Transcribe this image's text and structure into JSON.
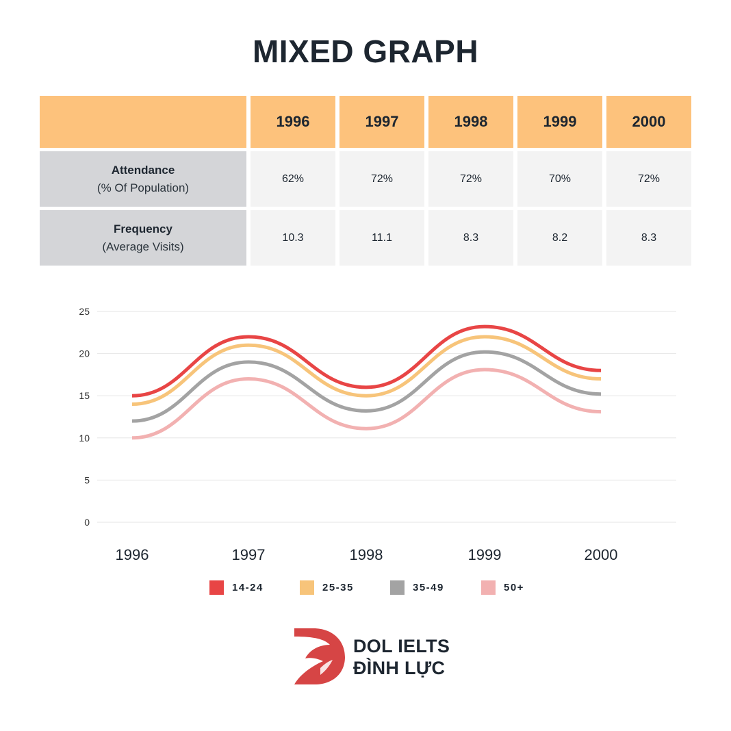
{
  "title": "MIXED GRAPH",
  "table": {
    "years": [
      "1996",
      "1997",
      "1998",
      "1999",
      "2000"
    ],
    "rows": [
      {
        "label": "Attendance",
        "sublabel": "(% Of Population)",
        "values": [
          "62%",
          "72%",
          "72%",
          "70%",
          "72%"
        ]
      },
      {
        "label": "Frequency",
        "sublabel": "(Average Visits)",
        "values": [
          "10.3",
          "11.1",
          "8.3",
          "8.2",
          "8.3"
        ]
      }
    ]
  },
  "chart_data": {
    "type": "line",
    "categories": [
      "1996",
      "1997",
      "1998",
      "1999",
      "2000"
    ],
    "ylim": [
      0,
      25
    ],
    "yticks": [
      "0",
      "5",
      "10",
      "15",
      "20",
      "25"
    ],
    "grid": true,
    "legend_position": "bottom",
    "series": [
      {
        "name": "14-24",
        "color": "#e84545",
        "values": [
          15,
          22,
          16,
          23.2,
          18
        ]
      },
      {
        "name": "25-35",
        "color": "#f7c47a",
        "values": [
          14,
          21,
          15,
          22,
          17
        ]
      },
      {
        "name": "35-49",
        "color": "#a3a3a3",
        "values": [
          12,
          19,
          13.2,
          20.2,
          15.2
        ]
      },
      {
        "name": "50+",
        "color": "#f2b1b1",
        "values": [
          10,
          17,
          11.1,
          18.1,
          13.1
        ]
      }
    ]
  },
  "brand": {
    "line1": "DOL IELTS",
    "line2": "ĐÌNH LỰC",
    "color": "#d64545"
  }
}
